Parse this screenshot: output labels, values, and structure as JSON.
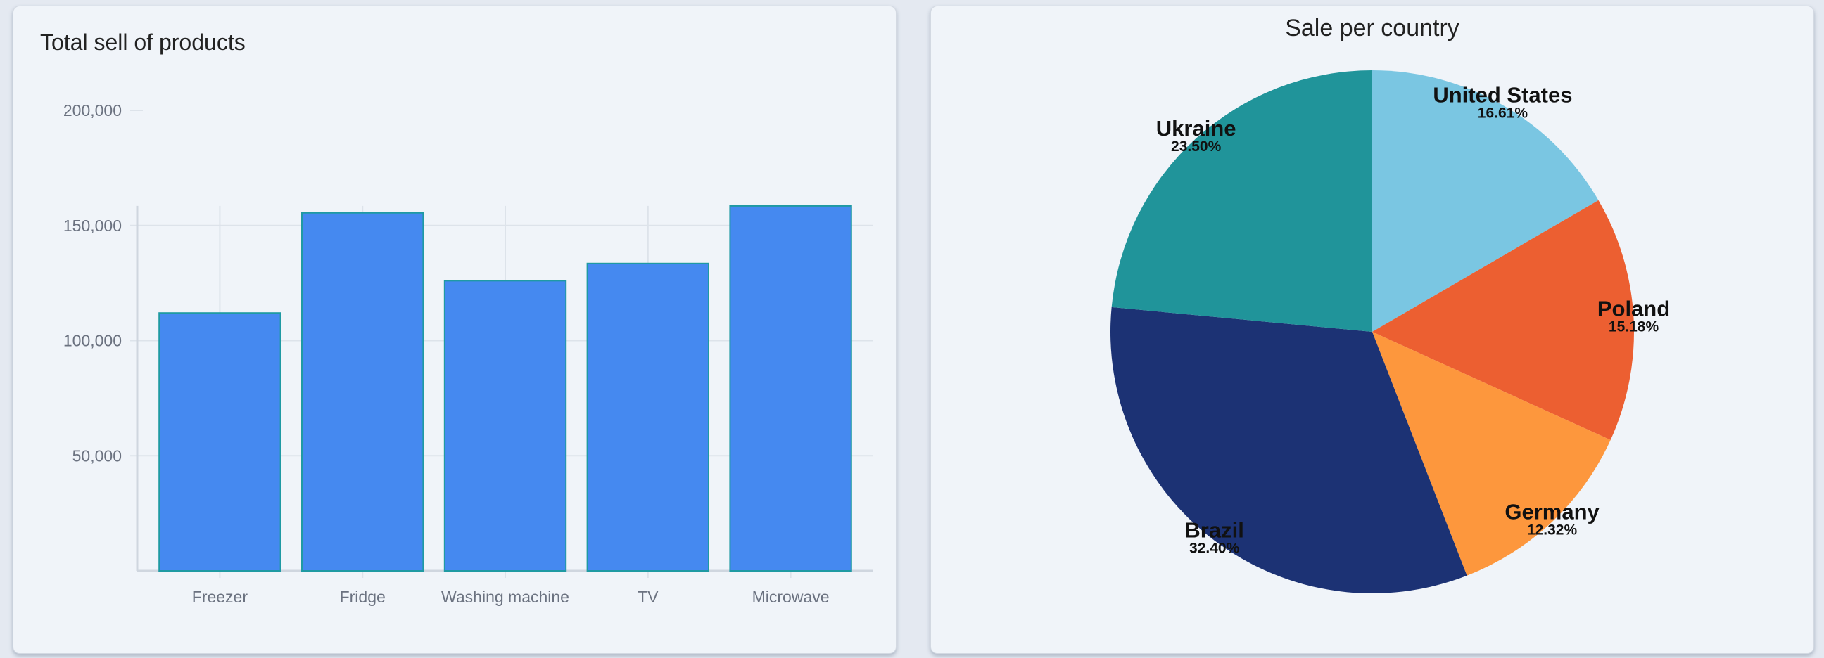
{
  "chart_data": [
    {
      "type": "bar",
      "title": "Total sell of products",
      "xlabel": "",
      "ylabel": "",
      "categories": [
        "Freezer",
        "Fridge",
        "Washing machine",
        "TV",
        "Microwave"
      ],
      "values": [
        112000,
        155500,
        126000,
        133500,
        158500
      ],
      "ylim": [
        0,
        200000
      ],
      "yticks": [
        50000,
        100000,
        150000,
        200000
      ],
      "ytick_labels": [
        "50,000",
        "100,000",
        "150,000",
        "200,000"
      ],
      "grid": true,
      "colors": {
        "bar_fill": "#4589f0",
        "bar_stroke": "#1f9aa3",
        "grid": "#dde3ea"
      }
    },
    {
      "type": "pie",
      "title": "Sale per country",
      "slices": [
        {
          "name": "United States",
          "value": 16.61,
          "label": "16.61%",
          "color": "#7ac6e2"
        },
        {
          "name": "Poland",
          "value": 15.18,
          "label": "15.18%",
          "color": "#ec5f31"
        },
        {
          "name": "Germany",
          "value": 12.32,
          "label": "12.32%",
          "color": "#fd973d"
        },
        {
          "name": "Brazil",
          "value": 32.4,
          "label": "32.40%",
          "color": "#1c3274"
        },
        {
          "name": "Ukraine",
          "value": 23.5,
          "label": "23.50%",
          "color": "#20949a"
        }
      ]
    }
  ]
}
